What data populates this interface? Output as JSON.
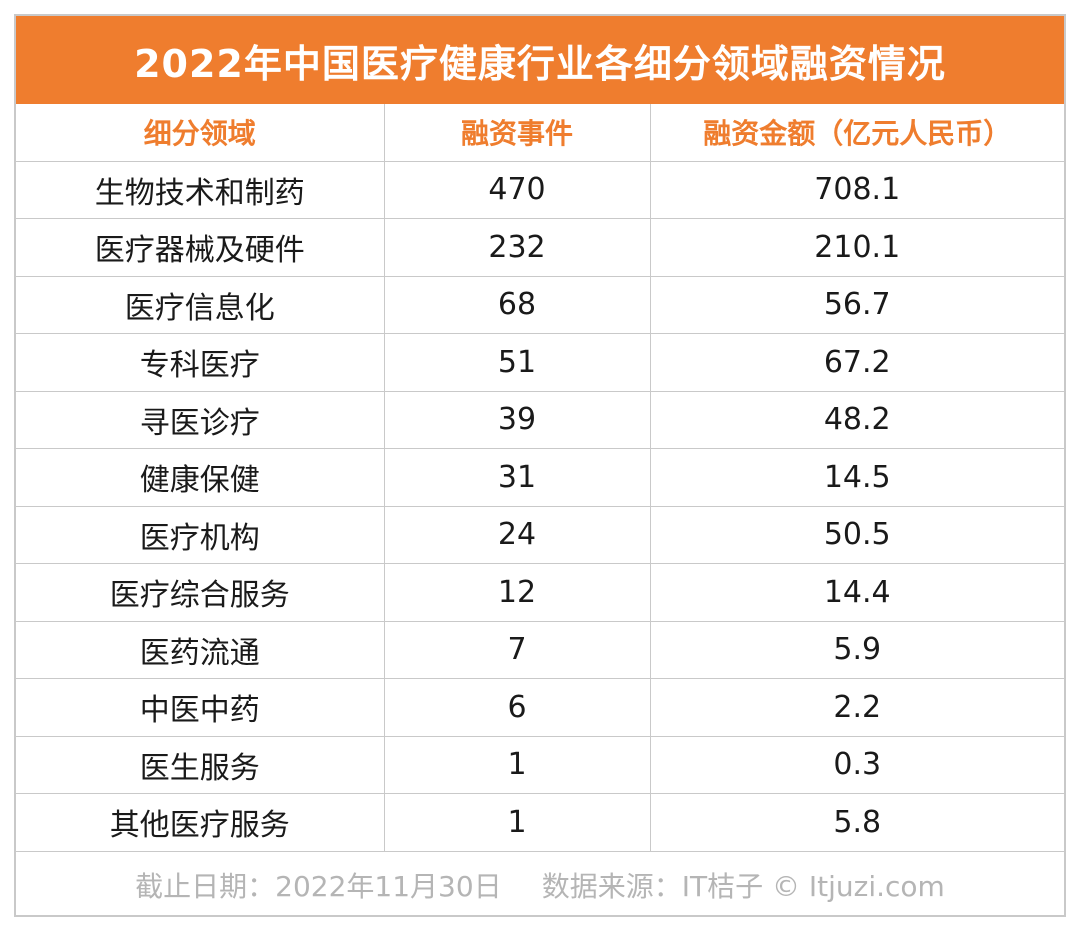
{
  "title": "2022年中国医疗健康行业各细分领域融资情况",
  "headers": [
    "细分领域",
    "融资事件",
    "融资金额（亿元人民币）"
  ],
  "chart_data": {
    "type": "table",
    "title": "2022年中国医疗健康行业各细分领域融资情况",
    "columns": [
      "细分领域",
      "融资事件",
      "融资金额（亿元人民币）"
    ],
    "rows": [
      [
        "生物技术和制药",
        "470",
        "708.1"
      ],
      [
        "医疗器械及硬件",
        "232",
        "210.1"
      ],
      [
        "医疗信息化",
        "68",
        "56.7"
      ],
      [
        "专科医疗",
        "51",
        "67.2"
      ],
      [
        "寻医诊疗",
        "39",
        "48.2"
      ],
      [
        "健康保健",
        "31",
        "14.5"
      ],
      [
        "医疗机构",
        "24",
        "50.5"
      ],
      [
        "医疗综合服务",
        "12",
        "14.4"
      ],
      [
        "医药流通",
        "7",
        "5.9"
      ],
      [
        "中医中药",
        "6",
        "2.2"
      ],
      [
        "医生服务",
        "1",
        "0.3"
      ],
      [
        "其他医疗服务",
        "1",
        "5.8"
      ]
    ]
  },
  "footer": {
    "date": "截止日期：2022年11月30日",
    "source": "数据来源：IT桔子 © Itjuzi.com"
  },
  "colors": {
    "accent": "#ef7d2e",
    "grid": "#c9c9c9",
    "footer_text": "#b5b5b5"
  }
}
